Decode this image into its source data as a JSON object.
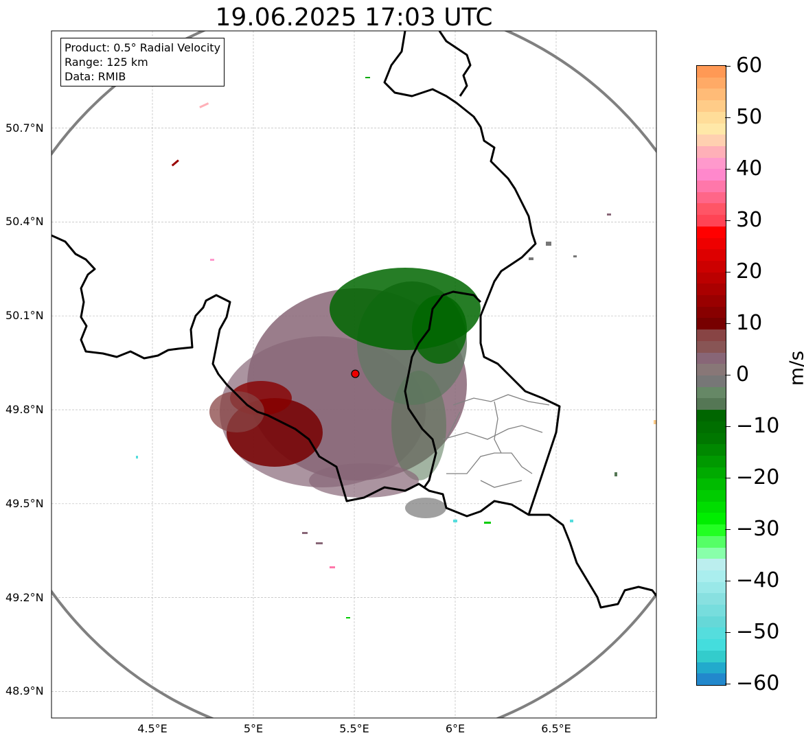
{
  "title": "19.06.2025 17:03 UTC",
  "info": {
    "product": "Product: 0.5° Radial Velocity",
    "range": "Range: 125 km",
    "data": "Data: RMIB"
  },
  "lat_labels": [
    "50.7°N",
    "50.4°N",
    "50.1°N",
    "49.8°N",
    "49.5°N",
    "49.2°N",
    "48.9°N"
  ],
  "lon_labels": [
    "4.5°E",
    "5°E",
    "5.5°E",
    "6°E",
    "6.5°E"
  ],
  "map": {
    "lat_values": [
      50.7,
      50.4,
      50.1,
      49.8,
      49.5,
      49.2,
      48.9
    ],
    "lon_values": [
      4.5,
      5.0,
      5.5,
      6.0,
      6.5
    ],
    "radar_site": {
      "lon": 5.505,
      "lat": 49.915
    },
    "range_ring_km": 125
  },
  "colorbar": {
    "label": "m/s",
    "ticks": [
      "60",
      "50",
      "40",
      "30",
      "20",
      "10",
      "0",
      "−10",
      "−20",
      "−30",
      "−40",
      "−50",
      "−60"
    ],
    "min": -60,
    "max": 60,
    "colors": [
      "#ff9955",
      "#ffaa66",
      "#ffbb77",
      "#ffcc88",
      "#ffdd99",
      "#ffe8a8",
      "#ffd0b0",
      "#ffb0b8",
      "#ff99cc",
      "#ff88cc",
      "#ff77aa",
      "#ff6688",
      "#ff5566",
      "#ff4455",
      "#ff0000",
      "#ee0000",
      "#dd0000",
      "#cc0000",
      "#bb0000",
      "#aa0000",
      "#990000",
      "#880000",
      "#770000",
      "#884444",
      "#885555",
      "#886677",
      "#887777",
      "#777777",
      "#668866",
      "#557755",
      "#006600",
      "#006f00",
      "#007700",
      "#008800",
      "#009900",
      "#00aa00",
      "#00bb00",
      "#00cc00",
      "#00dd00",
      "#00ee00",
      "#22ff22",
      "#55ff66",
      "#88ffaa",
      "#bbeeee",
      "#aaeeee",
      "#99e8e8",
      "#88e0e0",
      "#77dddd",
      "#66d8d8",
      "#55dddd",
      "#44dddd",
      "#33cccc",
      "#22aacc",
      "#2288cc"
    ],
    "range_lo": "−60",
    "range_hi": "60"
  }
}
